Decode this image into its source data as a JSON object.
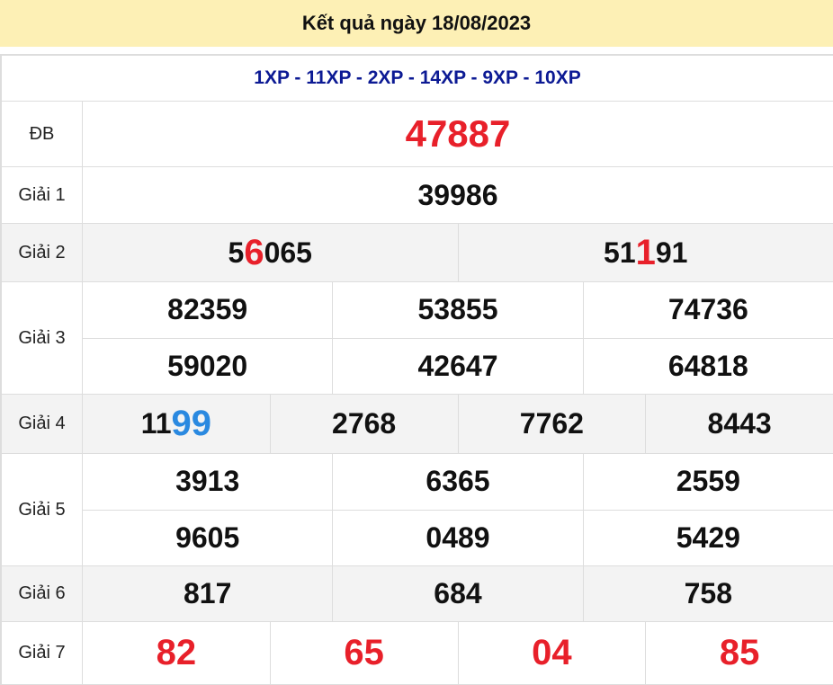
{
  "title": "Kết quả ngày 18/08/2023",
  "codes": "1XP - 11XP - 2XP - 14XP - 9XP - 10XP",
  "colors": {
    "header_bg": "#fdf0b5",
    "red": "#e8202a",
    "blue": "#2a89e0",
    "codes": "#0c1a94"
  },
  "prizes": [
    {
      "label": "ĐB",
      "style": "big",
      "gray": false,
      "height": 73,
      "lines": [
        [
          {
            "pre": "47887"
          }
        ]
      ]
    },
    {
      "label": "Giải 1",
      "gray": false,
      "height": 63,
      "lines": [
        [
          {
            "pre": "39986"
          }
        ]
      ]
    },
    {
      "label": "Giải 2",
      "gray": true,
      "height": 65,
      "lines": [
        [
          {
            "pre": "5",
            "hi": "6",
            "post": "065",
            "hi_color": "red"
          },
          {
            "pre": "51",
            "hi": "1",
            "post": "91",
            "hi_color": "red"
          }
        ]
      ]
    },
    {
      "label": "Giải 3",
      "gray": false,
      "height": 125,
      "lines": [
        [
          {
            "pre": "82359"
          },
          {
            "pre": "53855"
          },
          {
            "pre": "74736"
          }
        ],
        [
          {
            "pre": "59020"
          },
          {
            "pre": "42647"
          },
          {
            "pre": "64818"
          }
        ]
      ]
    },
    {
      "label": "Giải 4",
      "gray": true,
      "height": 66,
      "lines": [
        [
          {
            "pre": "11",
            "hi": "99",
            "hi_color": "blue"
          },
          {
            "pre": "2768"
          },
          {
            "pre": "7762"
          },
          {
            "pre": "8443"
          }
        ]
      ]
    },
    {
      "label": "Giải 5",
      "gray": false,
      "height": 125,
      "lines": [
        [
          {
            "pre": "3913"
          },
          {
            "pre": "6365"
          },
          {
            "pre": "2559"
          }
        ],
        [
          {
            "pre": "9605"
          },
          {
            "pre": "0489"
          },
          {
            "pre": "5429"
          }
        ]
      ]
    },
    {
      "label": "Giải 6",
      "gray": true,
      "height": 62,
      "lines": [
        [
          {
            "pre": "817"
          },
          {
            "pre": "684"
          },
          {
            "pre": "758"
          }
        ]
      ]
    },
    {
      "label": "Giải 7",
      "style": "g7",
      "gray": false,
      "height": 70,
      "lines": [
        [
          {
            "pre": "82"
          },
          {
            "pre": "65"
          },
          {
            "pre": "04"
          },
          {
            "pre": "85"
          }
        ]
      ]
    }
  ]
}
